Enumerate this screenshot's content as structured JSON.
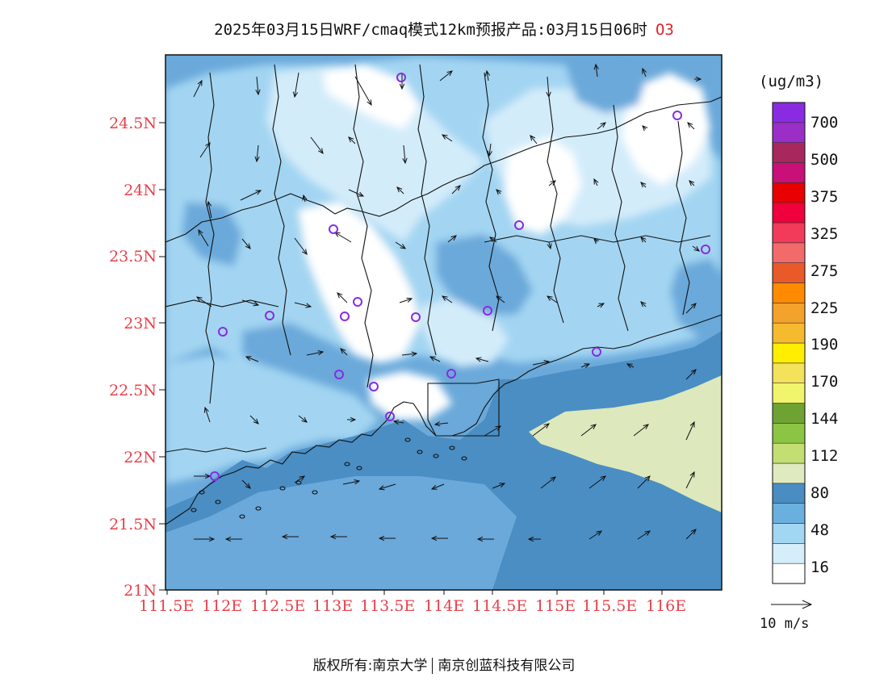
{
  "title": {
    "main": "2025年03月15日WRF/cmaq模式12km预报产品:03月15日06时",
    "species": "O3"
  },
  "map": {
    "lat_labels": [
      "24.5N",
      "24N",
      "23.5N",
      "23N",
      "22.5N",
      "22N",
      "21.5N",
      "21N"
    ],
    "lon_labels": [
      "111.5E",
      "112E",
      "112.5E",
      "113E",
      "113.5E",
      "114E",
      "114.5E",
      "115E",
      "115.5E",
      "116E"
    ],
    "background_colors": {
      "sea": "#4a8ec4",
      "land_mid": "#6aa9da",
      "land_light": "#a3d5f2",
      "land_lighter": "#d3ecfa",
      "land_white": "#ffffff",
      "high_patch": "#dde8bc"
    },
    "station_marker_color": "#8a2be2"
  },
  "colorbar": {
    "unit": "(ug/m3)",
    "labels": [
      "700",
      "500",
      "375",
      "325",
      "275",
      "225",
      "190",
      "170",
      "144",
      "112",
      "80",
      "48",
      "16"
    ],
    "colors": [
      "#ffffff",
      "#d6eefa",
      "#a2d7f4",
      "#6ab0df",
      "#4a8dc2",
      "#dfeabf",
      "#c3df74",
      "#8cc443",
      "#6ea334",
      "#f1f56b",
      "#f3e25a",
      "#ffee00",
      "#f6ba2e",
      "#f3a22b",
      "#ff8a00",
      "#e85a2a",
      "#f26a6a",
      "#f23a5a",
      "#f0003c",
      "#e80000",
      "#c81078",
      "#a8285e",
      "#9c2ec8",
      "#8a2be2"
    ]
  },
  "vector_legend": {
    "label": "10 m/s"
  },
  "footer": {
    "left": "版权所有:南京大学",
    "right": "南京创蓝科技有限公司"
  }
}
